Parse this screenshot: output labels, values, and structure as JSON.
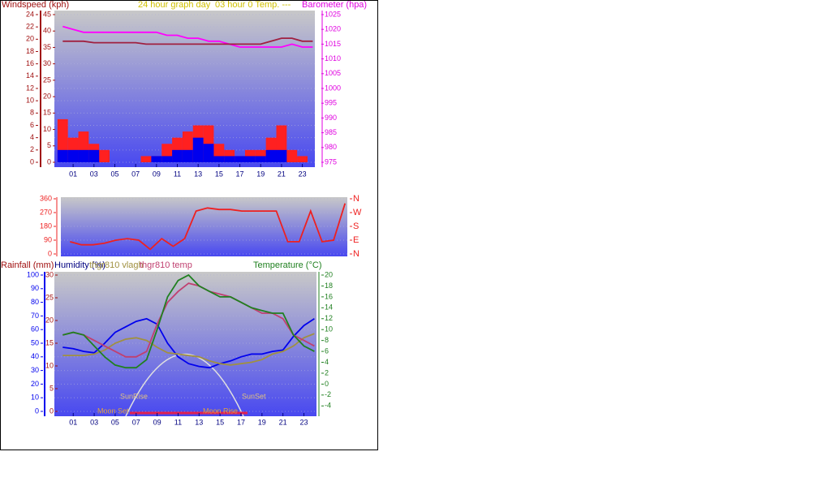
{
  "chart_data": [
    {
      "type": "combo",
      "title": "24 hour graph day",
      "subtitle": "03 hour 0 Temp. ---",
      "ylabel": "Windspeed (kph)",
      "y2label": "Barometer (hpa)",
      "x": [
        0,
        1,
        2,
        3,
        4,
        5,
        6,
        7,
        8,
        9,
        10,
        11,
        12,
        13,
        14,
        15,
        16,
        17,
        18,
        19,
        20,
        21,
        22,
        23,
        24
      ],
      "xlim": [
        -0.8,
        24.2
      ],
      "xticks": [
        {
          "value": 1,
          "label": "01"
        },
        {
          "value": 3,
          "label": "03"
        },
        {
          "value": 5,
          "label": "05"
        },
        {
          "value": 7,
          "label": "07"
        },
        {
          "value": 9,
          "label": "09"
        },
        {
          "value": 11,
          "label": "11"
        },
        {
          "value": 13,
          "label": "13"
        },
        {
          "value": 15,
          "label": "15"
        },
        {
          "value": 17,
          "label": "17"
        },
        {
          "value": 19,
          "label": "19"
        },
        {
          "value": 21,
          "label": "21"
        },
        {
          "value": 23,
          "label": "23"
        }
      ],
      "ylim": [
        0,
        24
      ],
      "yticks": [
        0,
        2,
        4,
        6,
        8,
        10,
        12,
        14,
        16,
        18,
        20,
        22,
        24
      ],
      "y3lim": [
        0,
        45
      ],
      "y3ticks": [
        0,
        5,
        10,
        15,
        20,
        25,
        30,
        35,
        40,
        45
      ],
      "y2lim": [
        975,
        1025
      ],
      "y2ticks": [
        975,
        980,
        985,
        990,
        995,
        1000,
        1005,
        1010,
        1015,
        1020,
        1025
      ],
      "series": [
        {
          "type": "bar",
          "color": "#ff2020",
          "values": [
            7,
            4,
            5,
            3,
            2,
            0,
            0,
            0,
            1,
            1,
            3,
            4,
            5,
            6,
            6,
            3,
            2,
            1,
            2,
            2,
            4,
            6,
            2,
            1,
            0
          ]
        },
        {
          "type": "bar",
          "color": "#0000ee",
          "values": [
            2,
            2,
            2,
            2,
            0,
            0,
            0,
            0,
            0,
            1,
            1,
            2,
            2,
            4,
            3,
            1,
            1,
            1,
            1,
            1,
            2,
            2,
            0,
            0,
            0
          ]
        },
        {
          "type": "line",
          "axis": "y2",
          "color": "#ff00ff",
          "values": [
            1021,
            1020,
            1019,
            1019,
            1019,
            1019,
            1019,
            1019,
            1019,
            1019,
            1018,
            1018,
            1017,
            1017,
            1016,
            1016,
            1015,
            1014,
            1014,
            1014,
            1014,
            1014,
            1015,
            1014,
            1014
          ]
        },
        {
          "type": "line",
          "axis": "y2",
          "color": "#a02040",
          "values": [
            1016,
            1016,
            1016,
            1015.5,
            1015.5,
            1015.5,
            1015.5,
            1015.5,
            1015,
            1015,
            1015,
            1015,
            1015,
            1015,
            1015,
            1015,
            1015,
            1015,
            1015,
            1015,
            1016,
            1017,
            1017,
            1016,
            1016
          ]
        }
      ]
    },
    {
      "type": "combo",
      "x": [
        0,
        1,
        2,
        3,
        4,
        5,
        6,
        7,
        8,
        9,
        10,
        11,
        12,
        13,
        14,
        15,
        16,
        17,
        18,
        19,
        20,
        21,
        22,
        23,
        24
      ],
      "xlim": [
        -0.8,
        24.2
      ],
      "ylim": [
        0,
        360
      ],
      "yticks": [
        0,
        90,
        180,
        270,
        360
      ],
      "y2lim": [
        0,
        360
      ],
      "y2ticks": [
        {
          "value": 360,
          "label": "N"
        },
        {
          "value": 270,
          "label": "W"
        },
        {
          "value": 180,
          "label": "S"
        },
        {
          "value": 90,
          "label": "E"
        },
        {
          "value": 0,
          "label": "N"
        }
      ],
      "series": [
        {
          "type": "line",
          "color": "#ee2020",
          "values": [
            80,
            60,
            60,
            70,
            90,
            100,
            90,
            30,
            100,
            50,
            100,
            280,
            300,
            290,
            290,
            280,
            280,
            280,
            280,
            80,
            80,
            280,
            80,
            90,
            330
          ]
        }
      ]
    },
    {
      "type": "combo",
      "y3label": "Rainfall (mm)",
      "ylabel": "Humidity (%)",
      "y2label": "Temperature (°C)",
      "annotations": [
        "SunRise",
        "SunSet",
        "Moon Set",
        "Moon Rise"
      ],
      "x": [
        0,
        1,
        2,
        3,
        4,
        5,
        6,
        7,
        8,
        9,
        10,
        11,
        12,
        13,
        14,
        15,
        16,
        17,
        18,
        19,
        20,
        21,
        22,
        23,
        24
      ],
      "xlim": [
        -0.8,
        24.2
      ],
      "xticks": [
        {
          "value": 1,
          "label": "01"
        },
        {
          "value": 3,
          "label": "03"
        },
        {
          "value": 5,
          "label": "05"
        },
        {
          "value": 7,
          "label": "07"
        },
        {
          "value": 9,
          "label": "09"
        },
        {
          "value": 11,
          "label": "11"
        },
        {
          "value": 13,
          "label": "13"
        },
        {
          "value": 15,
          "label": "15"
        },
        {
          "value": 17,
          "label": "17"
        },
        {
          "value": 19,
          "label": "19"
        },
        {
          "value": 21,
          "label": "21"
        },
        {
          "value": 23,
          "label": "23"
        }
      ],
      "ylim": [
        0,
        100
      ],
      "yticks": [
        0,
        10,
        20,
        30,
        40,
        50,
        60,
        70,
        80,
        90,
        100
      ],
      "y3lim": [
        0,
        30
      ],
      "y3ticks": [
        0,
        5,
        10,
        15,
        20,
        25,
        30
      ],
      "y2lim": [
        -5,
        20
      ],
      "y2ticks": [
        -4,
        -2,
        0,
        2,
        4,
        6,
        8,
        10,
        12,
        14,
        16,
        18,
        20
      ],
      "series": [
        {
          "type": "line",
          "color": "#0000ee",
          "values": [
            47,
            46,
            44,
            43,
            50,
            58,
            62,
            66,
            68,
            64,
            50,
            40,
            35,
            33,
            32,
            35,
            37,
            40,
            42,
            42,
            44,
            45,
            55,
            63,
            68
          ]
        },
        {
          "type": "line",
          "name": "thgr810 vlagh",
          "color": "#a09040",
          "values": [
            41,
            41,
            41,
            42,
            45,
            50,
            53,
            54,
            52,
            47,
            43,
            42,
            41,
            40,
            37,
            35,
            34,
            35,
            36,
            38,
            42,
            44,
            48,
            54,
            57
          ]
        },
        {
          "type": "line",
          "axis": "y2",
          "name": "thgr810 temp",
          "color": "#c04070",
          "values": [
            9,
            9.5,
            9,
            8,
            7,
            6,
            5,
            5,
            6,
            11,
            15,
            17,
            18.5,
            18,
            17,
            16.5,
            16,
            15,
            14,
            13,
            13,
            12,
            9,
            8,
            7
          ]
        },
        {
          "type": "line",
          "axis": "y2",
          "color": "#208020",
          "values": [
            9,
            9.5,
            9,
            7,
            5,
            3.5,
            3,
            3,
            4.5,
            10,
            16,
            19,
            20,
            18,
            17,
            16,
            16,
            15,
            14,
            13.5,
            13,
            13,
            9,
            7,
            6
          ]
        }
      ]
    }
  ]
}
